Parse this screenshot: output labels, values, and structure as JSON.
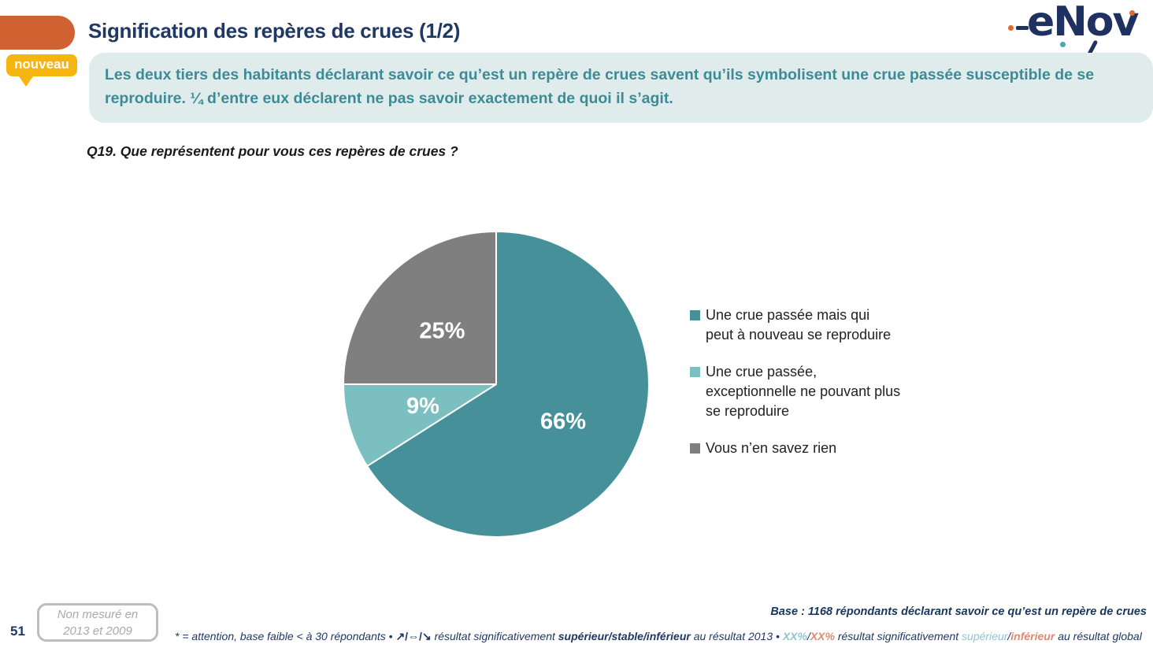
{
  "header": {
    "title": "Signification des repères de crues (1/2)",
    "badge": "nouveau",
    "logo_text": "eNov"
  },
  "summary": "Les deux tiers des habitants déclarant savoir ce qu’est un repère de crues savent qu’ils symbolisent une crue passée susceptible de se reproduire. ¼ d’entre eux déclarent ne pas savoir exactement de quoi il s’agit.",
  "question": "Q19. Que représentent pour vous ces repères de crues ?",
  "chart_data": {
    "type": "pie",
    "start_angle_deg": -90,
    "direction": "clockwise",
    "legend_position": "right",
    "slices": [
      {
        "label": "Une crue passée mais qui peut à nouveau se reproduire",
        "value": 66,
        "data_label": "66%",
        "color": "#46909a"
      },
      {
        "label": "Une crue passée, exceptionnelle ne pouvant plus se reproduire",
        "value": 9,
        "data_label": "9%",
        "color": "#7bbfc1"
      },
      {
        "label": "Vous n’en savez rien",
        "value": 25,
        "data_label": "25%",
        "color": "#7f7f7f"
      }
    ]
  },
  "footer": {
    "page_number": "51",
    "note_box_line1": "Non mesuré en",
    "note_box_line2": "2013 et 2009",
    "base_text": "Base : 1168 répondants déclarant savoir ce qu’est un repère de crues",
    "footnote": {
      "p1": "* = attention, base faible < à 30 répondants • ",
      "arrows": "↗/⇔/↘",
      "p2": " résultat significativement ",
      "b1": "supérieur/stable/inférieur",
      "p3": " au résultat 2013 • ",
      "xx_up": "XX%",
      "s1": "/",
      "xx_down": "XX%",
      "p4": " résultat significativement ",
      "sup": "supérieur",
      "s2": "/",
      "inf": "inférieur",
      "p5": " au résultat global"
    }
  },
  "colors": {
    "accent_orange": "#d06231",
    "badge_yellow": "#f6b40f",
    "title_navy": "#1f3864",
    "summary_teal": "#3d8b96",
    "summary_bg": "#dfeceb",
    "pie_teal": "#46909a",
    "pie_light_teal": "#7bbfc1",
    "pie_gray": "#7f7f7f",
    "footnote_navy": "#1f3864",
    "sig_up": "#8fc3cf",
    "sig_down": "#de8a74"
  }
}
